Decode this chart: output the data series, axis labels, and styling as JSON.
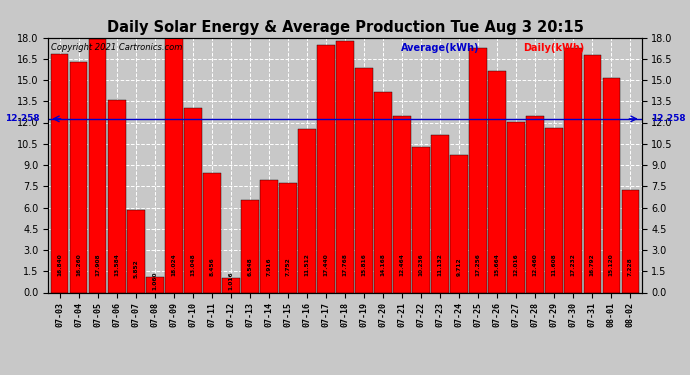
{
  "title": "Daily Solar Energy & Average Production Tue Aug 3 20:15",
  "copyright": "Copyright 2021 Cartronics.com",
  "average_label": "Average(kWh)",
  "daily_label": "Daily(kWh)",
  "average_value": 12.258,
  "categories": [
    "07-03",
    "07-04",
    "07-05",
    "07-06",
    "07-07",
    "07-08",
    "07-09",
    "07-10",
    "07-11",
    "07-12",
    "07-13",
    "07-14",
    "07-15",
    "07-16",
    "07-17",
    "07-18",
    "07-19",
    "07-20",
    "07-21",
    "07-22",
    "07-23",
    "07-24",
    "07-25",
    "07-26",
    "07-27",
    "07-28",
    "07-29",
    "07-30",
    "07-31",
    "08-01",
    "08-02"
  ],
  "values": [
    16.84,
    16.26,
    17.908,
    13.584,
    5.852,
    1.06,
    18.024,
    13.048,
    8.456,
    1.016,
    6.548,
    7.916,
    7.752,
    11.512,
    17.44,
    17.768,
    15.816,
    14.168,
    12.464,
    10.236,
    11.132,
    9.712,
    17.256,
    15.664,
    12.016,
    12.46,
    11.608,
    17.232,
    16.792,
    15.12,
    7.228
  ],
  "bar_color": "#ff0000",
  "avg_line_color": "#0000cc",
  "avg_label_color": "#0000cc",
  "daily_label_color": "#ff0000",
  "title_color": "#000000",
  "copyright_color": "#000000",
  "ylim": [
    0.0,
    18.0
  ],
  "yticks": [
    0.0,
    1.5,
    3.0,
    4.5,
    6.0,
    7.5,
    9.0,
    10.5,
    12.0,
    13.5,
    15.0,
    16.5,
    18.0
  ],
  "background_color": "#c8c8c8",
  "grid_color": "#ffffff",
  "bar_edge_color": "#000000"
}
